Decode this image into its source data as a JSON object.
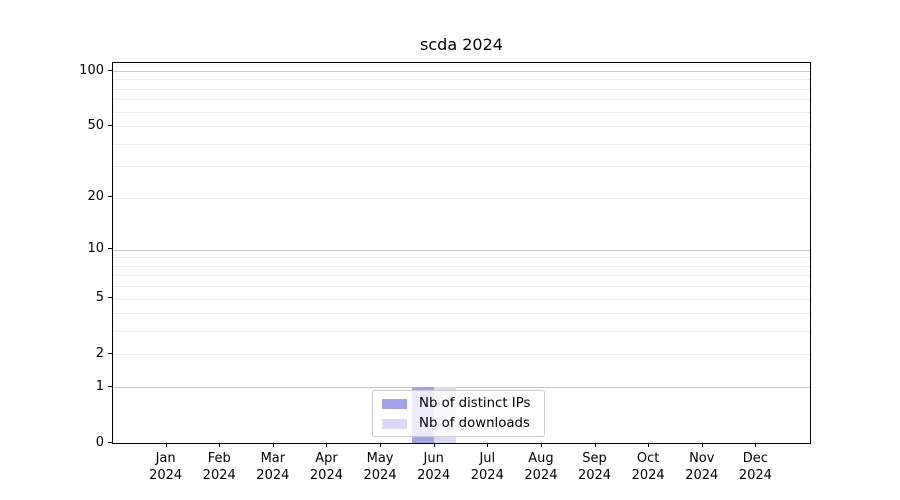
{
  "chart_data": {
    "type": "bar",
    "title": "scda 2024",
    "categories": [
      "Jan",
      "Feb",
      "Mar",
      "Apr",
      "May",
      "Jun",
      "Jul",
      "Aug",
      "Sep",
      "Oct",
      "Nov",
      "Dec"
    ],
    "category_year": "2024",
    "series": [
      {
        "name": "Nb of distinct IPs",
        "color": "#a2a2ec",
        "values": [
          0,
          0,
          0,
          0,
          0,
          1,
          0,
          0,
          0,
          0,
          0,
          0
        ]
      },
      {
        "name": "Nb of downloads",
        "color": "#d9d9f7",
        "values": [
          0,
          0,
          0,
          0,
          0,
          1,
          0,
          0,
          0,
          0,
          0,
          0
        ]
      }
    ],
    "y_scale": "log1p",
    "ylim": [
      0,
      100
    ],
    "y_ticks": [
      0,
      1,
      2,
      5,
      10,
      20,
      50,
      100
    ],
    "y_decade_ticks": [
      1,
      10,
      100
    ],
    "y_minor_ticks": [
      3,
      4,
      6,
      7,
      8,
      9,
      30,
      40,
      60,
      70,
      80,
      90
    ],
    "grid": true,
    "legend_position": "lower center",
    "colors": {
      "major_grid": "#c8c8c8",
      "minor_grid": "#ececec",
      "axis": "#000000",
      "legend_border": "#cccccc"
    }
  }
}
